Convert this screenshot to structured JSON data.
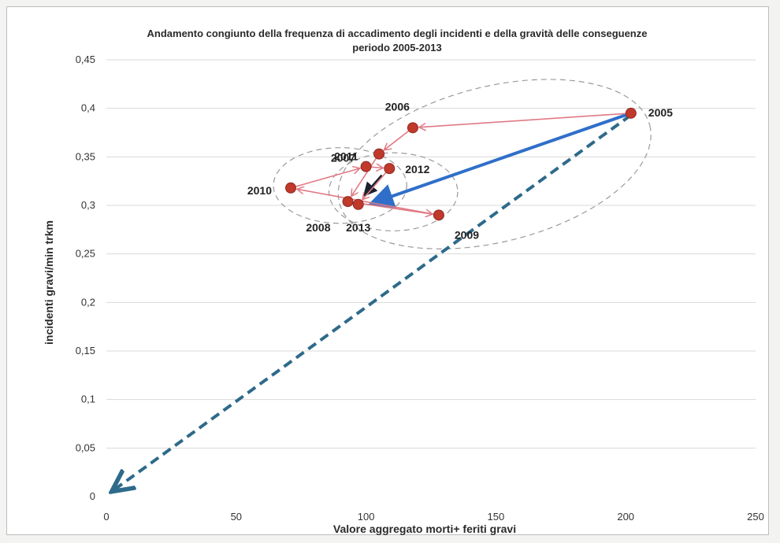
{
  "chart_data": {
    "type": "scatter",
    "title": "Andamento congiunto della frequenza di accadimento degli incidenti e della gravità delle conseguenze",
    "subtitle": "periodo 2005-2013",
    "xlabel": "Valore aggregato morti+ feriti gravi",
    "ylabel": "incidenti gravi/min trkm",
    "xlim": [
      0,
      250
    ],
    "ylim": [
      0,
      0.45
    ],
    "x_ticks": [
      0,
      50,
      100,
      150,
      200,
      250
    ],
    "x_tick_labels": [
      "0",
      "50",
      "100",
      "150",
      "200",
      "250"
    ],
    "y_ticks": [
      0,
      0.05,
      0.1,
      0.15,
      0.2,
      0.25,
      0.3,
      0.35,
      0.4,
      0.45
    ],
    "y_tick_labels": [
      "0",
      "0,05",
      "0,1",
      "0,15",
      "0,2",
      "0,25",
      "0,3",
      "0,35",
      "0,4",
      "0,45"
    ],
    "grid": "horizontal",
    "points": [
      {
        "label": "2005",
        "x": 202,
        "y": 0.395
      },
      {
        "label": "2006",
        "x": 118,
        "y": 0.38
      },
      {
        "label": "2007",
        "x": 105,
        "y": 0.353
      },
      {
        "label": "2008",
        "x": 93,
        "y": 0.304
      },
      {
        "label": "2009",
        "x": 128,
        "y": 0.29
      },
      {
        "label": "2010",
        "x": 71,
        "y": 0.318
      },
      {
        "label": "2011",
        "x": 100,
        "y": 0.34
      },
      {
        "label": "2012",
        "x": 109,
        "y": 0.338
      },
      {
        "label": "2013",
        "x": 97,
        "y": 0.301
      }
    ],
    "trajectory": [
      "2005",
      "2006",
      "2007",
      "2008",
      "2009",
      "2010",
      "2011",
      "2012",
      "2013"
    ],
    "trend_arrow": {
      "from": [
        202,
        0.395
      ],
      "to": [
        102,
        0.302
      ]
    },
    "target_arrow": {
      "from": [
        202,
        0.393
      ],
      "to": [
        3,
        0.007
      ]
    },
    "colors": {
      "point": "#c0392b",
      "trajectory": "#e07a85",
      "trend_arrow": "#2f6fc9",
      "target_arrow": "#2e6a8a",
      "ellipse": "#9a9a9a",
      "grid": "#d9d9d9",
      "pointer_arrow": "#1a2230"
    }
  }
}
